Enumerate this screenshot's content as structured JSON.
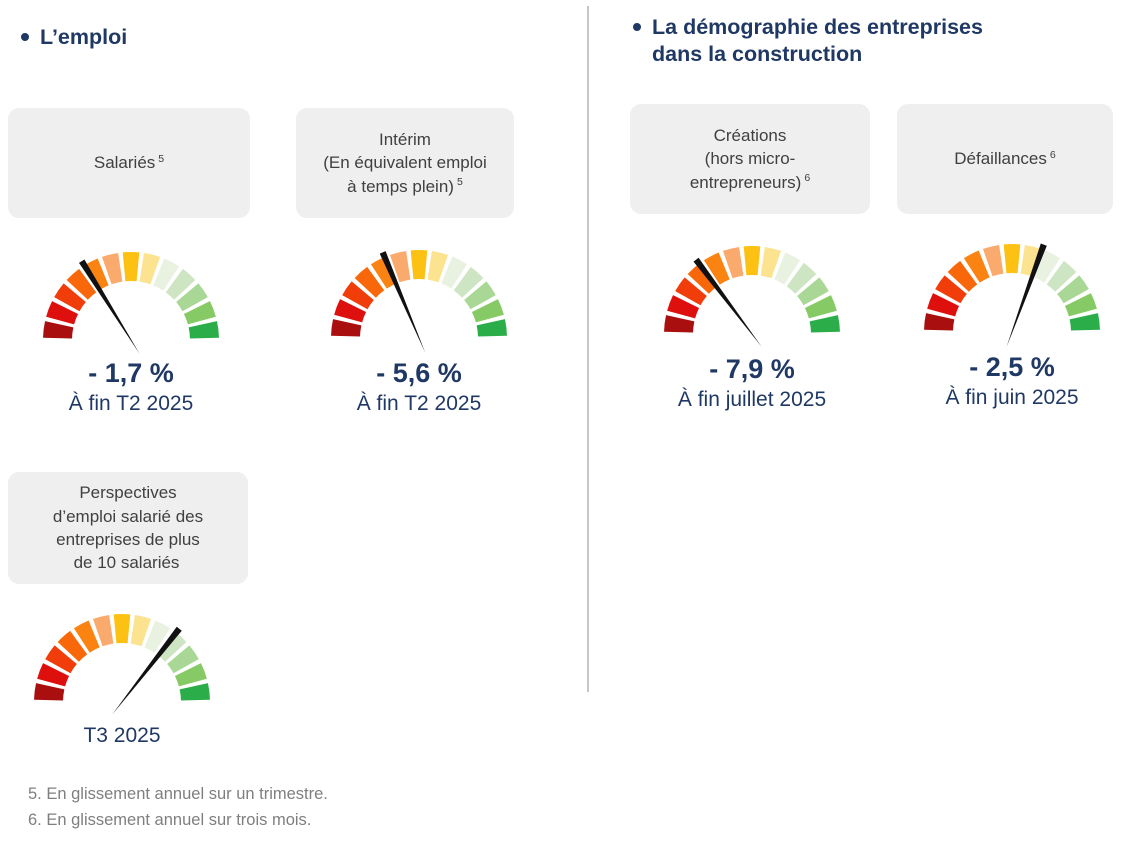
{
  "page": {
    "colors": {
      "navy": "#1f3864",
      "box_bg": "#efefef",
      "box_text": "#404040",
      "footnote_gray": "#7f7f7f",
      "divider_gray": "#c6c6c6",
      "needle": "#111111"
    }
  },
  "left_section": {
    "title": "L’emploi"
  },
  "right_section": {
    "title": "La démographie des entreprises\ndans la construction"
  },
  "gauge_palette": [
    "#a80f0e",
    "#dd100e",
    "#f03d0a",
    "#f8680a",
    "#fa8312",
    "#fbaa6d",
    "#fcc113",
    "#fce38f",
    "#e9f1e1",
    "#cde5c2",
    "#a9d795",
    "#86ca66",
    "#2bae49"
  ],
  "indicators": [
    {
      "id": "salaries",
      "label": "Salariés",
      "sup": "5",
      "value": "- 1,7 %",
      "caption": "À fin T2 2025",
      "needle_deg": 122
    },
    {
      "id": "interim",
      "label": "Intérim\n(En équivalent emploi\nà temps plein)",
      "sup": "5",
      "value": "- 5,6 %",
      "caption": "À fin T2 2025",
      "needle_deg": 113
    },
    {
      "id": "creations",
      "label": "Créations\n(hors micro-\nentrepreneurs)",
      "sup": "6",
      "value": "- 7,9 %",
      "caption": "À fin juillet 2025",
      "needle_deg": 127
    },
    {
      "id": "defaillances",
      "label": "Défaillances",
      "sup": "6",
      "value": "- 2,5 %",
      "caption": "À fin juin 2025",
      "needle_deg": 70
    },
    {
      "id": "perspectives",
      "label": "Perspectives\nd’emploi salarié des\nentreprises de plus\nde 10 salariés",
      "sup": "",
      "value": "",
      "caption": "T3 2025",
      "needle_deg": 52
    }
  ],
  "footnotes": [
    "5. En glissement annuel sur un trimestre.",
    "6. En glissement annuel sur trois mois."
  ],
  "chart_data": [
    {
      "type": "gauge",
      "title": "Salariés",
      "footnote_ref": 5,
      "value_label": "- 1,7 %",
      "value_percent": -1.7,
      "period": "À fin T2 2025",
      "scale": "semicircle red (bad, left) to green (good, right), 13 colored segments",
      "needle_fraction_from_left": 0.32
    },
    {
      "type": "gauge",
      "title": "Intérim (En équivalent emploi à temps plein)",
      "footnote_ref": 5,
      "value_label": "- 5,6 %",
      "value_percent": -5.6,
      "period": "À fin T2 2025",
      "scale": "semicircle red to green, 13 colored segments",
      "needle_fraction_from_left": 0.37
    },
    {
      "type": "gauge",
      "title": "Créations (hors micro-entrepreneurs)",
      "footnote_ref": 6,
      "value_label": "- 7,9 %",
      "value_percent": -7.9,
      "period": "À fin juillet 2025",
      "scale": "semicircle red to green, 13 colored segments",
      "needle_fraction_from_left": 0.29
    },
    {
      "type": "gauge",
      "title": "Défaillances",
      "footnote_ref": 6,
      "value_label": "- 2,5 %",
      "value_percent": -2.5,
      "period": "À fin juin 2025",
      "scale": "semicircle red to green, 13 colored segments",
      "needle_fraction_from_left": 0.61
    },
    {
      "type": "gauge",
      "title": "Perspectives d’emploi salarié des entreprises de plus de 10 salariés",
      "value_label": "",
      "period": "T3 2025",
      "scale": "semicircle red to green, 13 colored segments",
      "needle_fraction_from_left": 0.71
    }
  ]
}
